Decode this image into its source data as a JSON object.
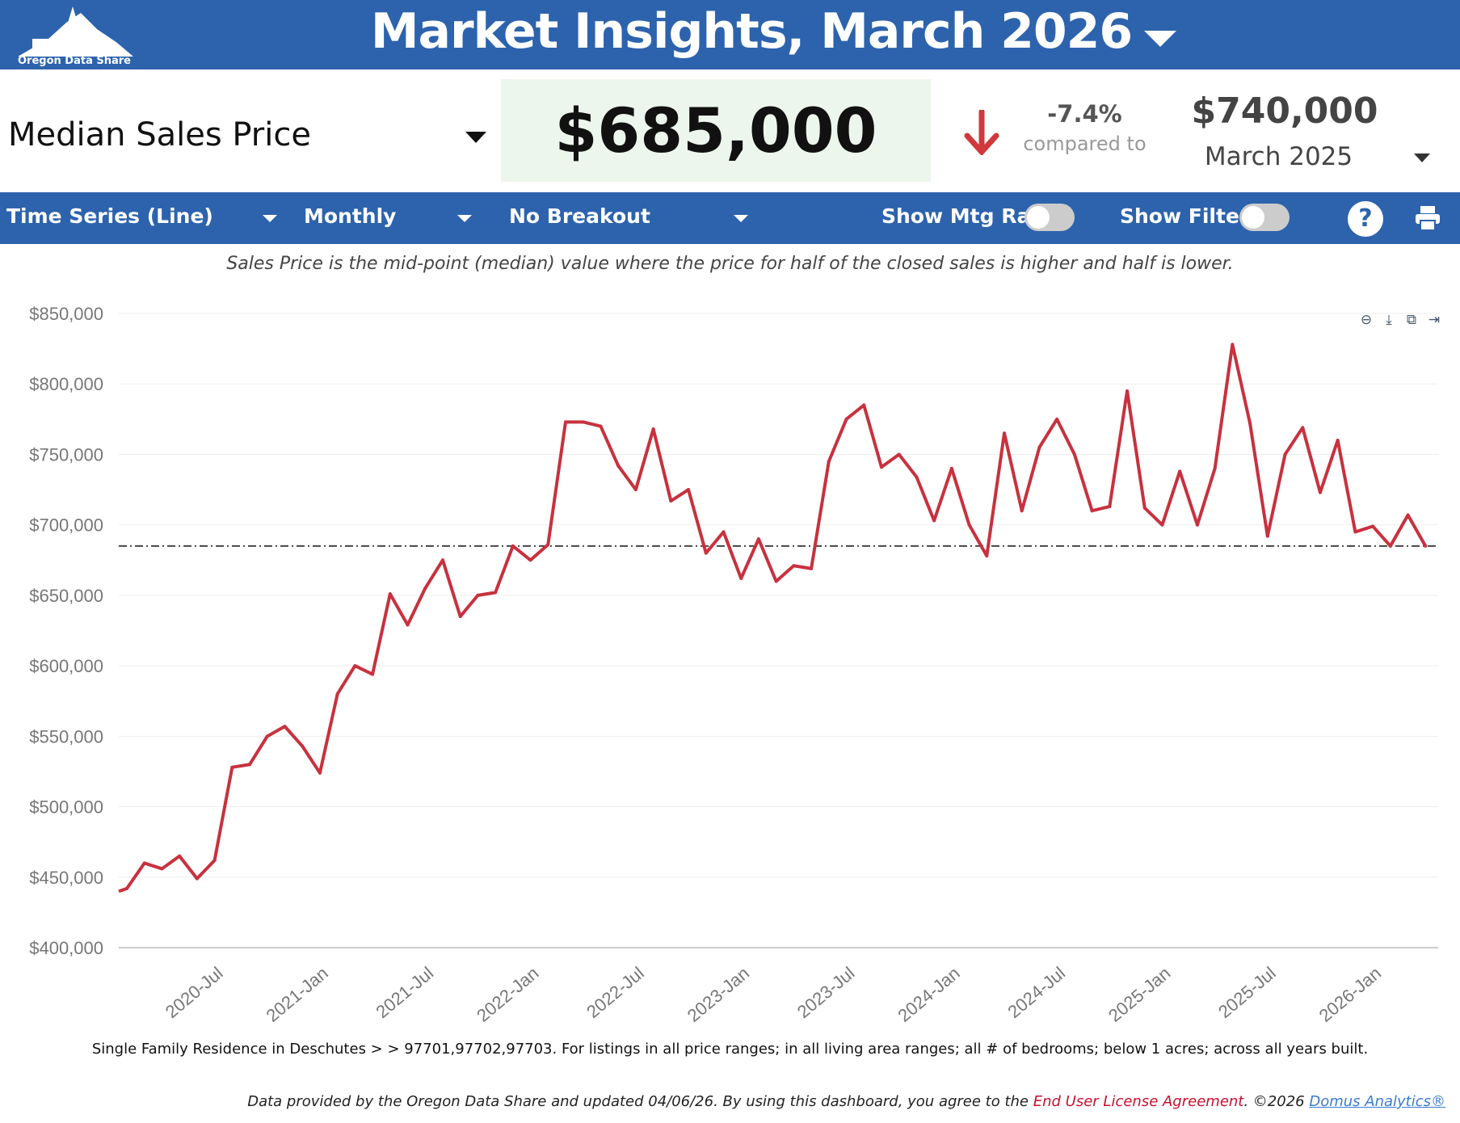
{
  "header": {
    "logo_text": "Oregon Data Share",
    "title": "Market Insights, March 2026"
  },
  "metric": {
    "name": "Median Sales Price",
    "value": "$685,000",
    "change": "-7.4%",
    "compared_label": "compared to",
    "compare_value": "$740,000",
    "compare_period": "March 2025",
    "trend": "down",
    "trend_color": "#d0393c"
  },
  "toolbar": {
    "chart_type": "Time Series (Line)",
    "interval": "Monthly",
    "breakout": "No Breakout",
    "mtg_rate_label": "Show Mtg Rate:",
    "mtg_rate_on": false,
    "filters_label": "Show Filters:",
    "filters_on": false,
    "help_label": "?"
  },
  "caption": "Sales Price is the mid-point (median) value where the price for half of the closed sales is higher and half is lower.",
  "chart_tools": [
    "zoom-out-icon",
    "download-icon",
    "copy-icon",
    "export-icon"
  ],
  "chart_data": {
    "type": "line",
    "start_month": "2020-Jan",
    "x_tick_labels": [
      "2020-Jul",
      "2021-Jan",
      "2021-Jul",
      "2022-Jan",
      "2022-Jul",
      "2023-Jan",
      "2023-Jul",
      "2024-Jan",
      "2024-Jul",
      "2025-Jan",
      "2025-Jul",
      "2026-Jan"
    ],
    "y_tick_labels": [
      "$400,000",
      "$450,000",
      "$500,000",
      "$550,000",
      "$600,000",
      "$650,000",
      "$700,000",
      "$750,000",
      "$800,000",
      "$850,000"
    ],
    "ylim": [
      400000,
      850000
    ],
    "grid": true,
    "reference_line": 685000,
    "series_color": "#c8313e",
    "values": [
      442000,
      460000,
      456000,
      465000,
      449000,
      462000,
      528000,
      530000,
      550000,
      557000,
      543000,
      524000,
      580000,
      600000,
      594000,
      651000,
      629000,
      655000,
      675000,
      635000,
      650000,
      652000,
      685000,
      675000,
      686000,
      773000,
      773000,
      770000,
      742000,
      725000,
      768000,
      717000,
      725000,
      680000,
      695000,
      662000,
      690000,
      660000,
      671000,
      669000,
      745000,
      775000,
      785000,
      741000,
      750000,
      734000,
      703000,
      740000,
      700000,
      678000,
      765000,
      710000,
      755000,
      775000,
      750000,
      710000,
      713000,
      795000,
      712000,
      700000,
      738000,
      700000,
      740000,
      828000,
      772000,
      692000,
      750000,
      769000,
      723000,
      760000,
      695000,
      699000,
      685000,
      707000,
      685000
    ]
  },
  "filters_text": "Single Family Residence in Deschutes > > 97701,97702,97703. For listings in all price ranges; in all living area ranges; all # of bedrooms; below 1 acres; across all years built.",
  "footer": {
    "text": "Data provided by the Oregon Data Share and updated 04/06/26.  By using this dashboard, you agree to the ",
    "eula": "End User License Agreement",
    "copyright": ".  ©2026 ",
    "vendor": "Domus Analytics®"
  }
}
